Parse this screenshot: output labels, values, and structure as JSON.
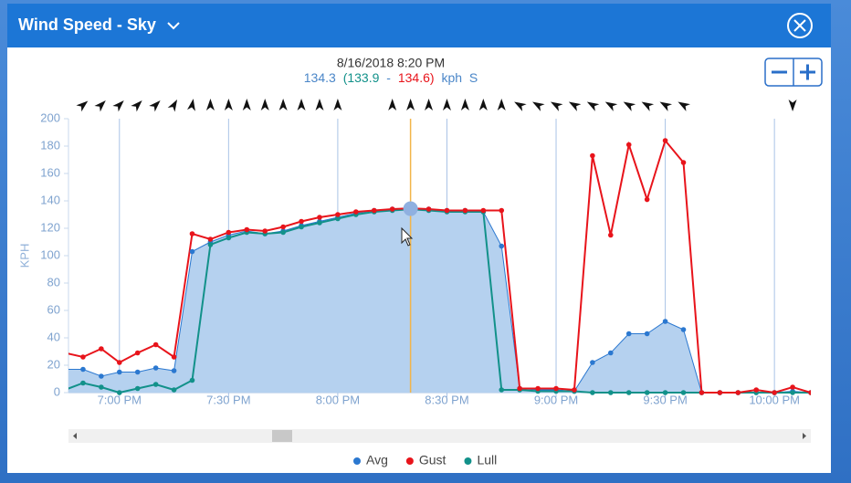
{
  "chart_data": {
    "type": "line",
    "title": "Wind Speed - Sky",
    "y_label": "KPH",
    "tooltip": {
      "time": "8/16/2018 8:20 PM",
      "avg": "134.3",
      "lull": "(133.9",
      "dash": "-",
      "gust": "134.6)",
      "unit": "kph",
      "direction": "S"
    },
    "x": [
      1125,
      1130,
      1135,
      1140,
      1145,
      1150,
      1155,
      1160,
      1165,
      1170,
      1175,
      1180,
      1185,
      1190,
      1195,
      1200,
      1205,
      1210,
      1215,
      1220,
      1225,
      1230,
      1235,
      1240,
      1245,
      1250,
      1255,
      1260,
      1265,
      1270,
      1275,
      1280,
      1285,
      1290,
      1295,
      1300,
      1305,
      1310,
      1315,
      1320,
      1325,
      1330
    ],
    "xlim": [
      1126,
      1330
    ],
    "xticks": [
      {
        "value": 1140,
        "label": "7:00 PM"
      },
      {
        "value": 1170,
        "label": "7:30 PM"
      },
      {
        "value": 1200,
        "label": "8:00 PM"
      },
      {
        "value": 1230,
        "label": "8:30 PM"
      },
      {
        "value": 1260,
        "label": "9:00 PM"
      },
      {
        "value": 1290,
        "label": "9:30 PM"
      },
      {
        "value": 1320,
        "label": "10:00 PM"
      }
    ],
    "ylim": [
      0,
      200
    ],
    "yticks": [
      0,
      20,
      40,
      60,
      80,
      100,
      120,
      140,
      160,
      180,
      200
    ],
    "grid": "x",
    "highlight_index": 19,
    "series": [
      {
        "name": "Avg",
        "color": "#2b78d0",
        "area": true,
        "values": [
          17,
          17,
          12,
          15,
          15,
          18,
          16,
          103,
          110,
          115,
          118,
          116,
          118,
          122,
          125,
          128,
          131,
          133,
          134,
          134.3,
          134,
          133,
          133,
          132,
          107,
          3,
          2,
          2,
          1,
          22,
          29,
          43,
          43,
          52,
          46,
          0,
          0,
          0,
          0,
          0,
          1,
          0
        ]
      },
      {
        "name": "Gust",
        "color": "#e8141b",
        "values": [
          29,
          26,
          32,
          22,
          29,
          35,
          26,
          116,
          112,
          117,
          119,
          118,
          121,
          125,
          128,
          130,
          132,
          133,
          134,
          134.6,
          134,
          133,
          133,
          133,
          133,
          3,
          3,
          3,
          2,
          173,
          115,
          181,
          141,
          184,
          168,
          0,
          0,
          0,
          2,
          0,
          4,
          0
        ]
      },
      {
        "name": "Lull",
        "color": "#12918a",
        "values": [
          2,
          7,
          4,
          0,
          3,
          6,
          2,
          9,
          108,
          113,
          117,
          116,
          117,
          121,
          124,
          127,
          130,
          132,
          133,
          133.9,
          133,
          132,
          132,
          132,
          2,
          2,
          1,
          1,
          1,
          0,
          0,
          0,
          0,
          0,
          0,
          0,
          0,
          0,
          0,
          0,
          0,
          0
        ]
      }
    ],
    "wind_direction": [
      null,
      50,
      45,
      45,
      45,
      45,
      30,
      10,
      0,
      0,
      0,
      0,
      0,
      0,
      0,
      0,
      null,
      null,
      0,
      0,
      0,
      0,
      0,
      0,
      0,
      -60,
      -60,
      -60,
      -60,
      -60,
      -60,
      -60,
      -60,
      -60,
      -60,
      null,
      null,
      null,
      null,
      null,
      180,
      null
    ]
  }
}
